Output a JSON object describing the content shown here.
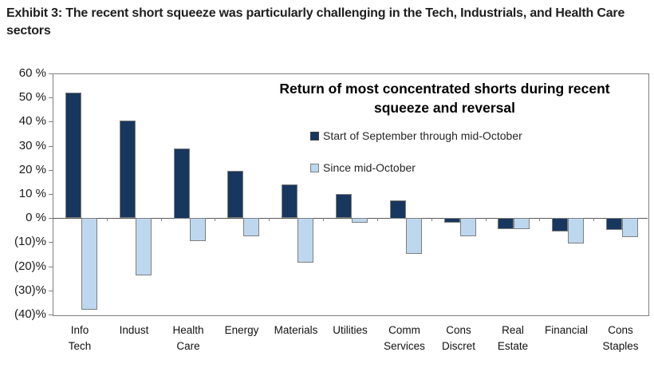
{
  "page": {
    "exhibit_title": "Exhibit 3: The recent short squeeze was particularly challenging in the Tech, Industrials, and Health Care sectors"
  },
  "chart_data": {
    "type": "bar",
    "title": "Return of most concentrated shorts during recent squeeze and reversal",
    "categories": [
      [
        "Info",
        "Tech"
      ],
      [
        "Indust"
      ],
      [
        "Health",
        "Care"
      ],
      [
        "Energy"
      ],
      [
        "Materials"
      ],
      [
        "Utilities"
      ],
      [
        "Comm",
        "Services"
      ],
      [
        "Cons",
        "Discret"
      ],
      [
        "Real",
        "Estate"
      ],
      [
        "Financial"
      ],
      [
        "Cons",
        "Staples"
      ]
    ],
    "series": [
      {
        "name": "Start of September through mid-October",
        "color": "#17375e",
        "border_color": "#404040",
        "values": [
          52,
          40.5,
          29,
          19.5,
          14,
          10,
          7.5,
          -2,
          -4.5,
          -5.5,
          -5
        ]
      },
      {
        "name": "Since mid-October",
        "color": "#bdd7ee",
        "border_color": "#7f7f7f",
        "values": [
          -38,
          -24,
          -9.5,
          -7.5,
          -18.5,
          -2,
          -15,
          -7.5,
          -4.5,
          -10.5,
          -8
        ]
      }
    ],
    "y_axis": {
      "min": -40,
      "max": 60,
      "step": 10,
      "tick_labels": [
        "60 %",
        "50 %",
        "40 %",
        "30 %",
        "20 %",
        "10 %",
        "0 %",
        "(10)%",
        "(20)%",
        "(30)%",
        "(40)%"
      ]
    },
    "unit": "percent",
    "grid": false,
    "legend_position": "inside-top-right",
    "bar_border_color": "#7f7f7f",
    "axis_color": "#808080"
  }
}
